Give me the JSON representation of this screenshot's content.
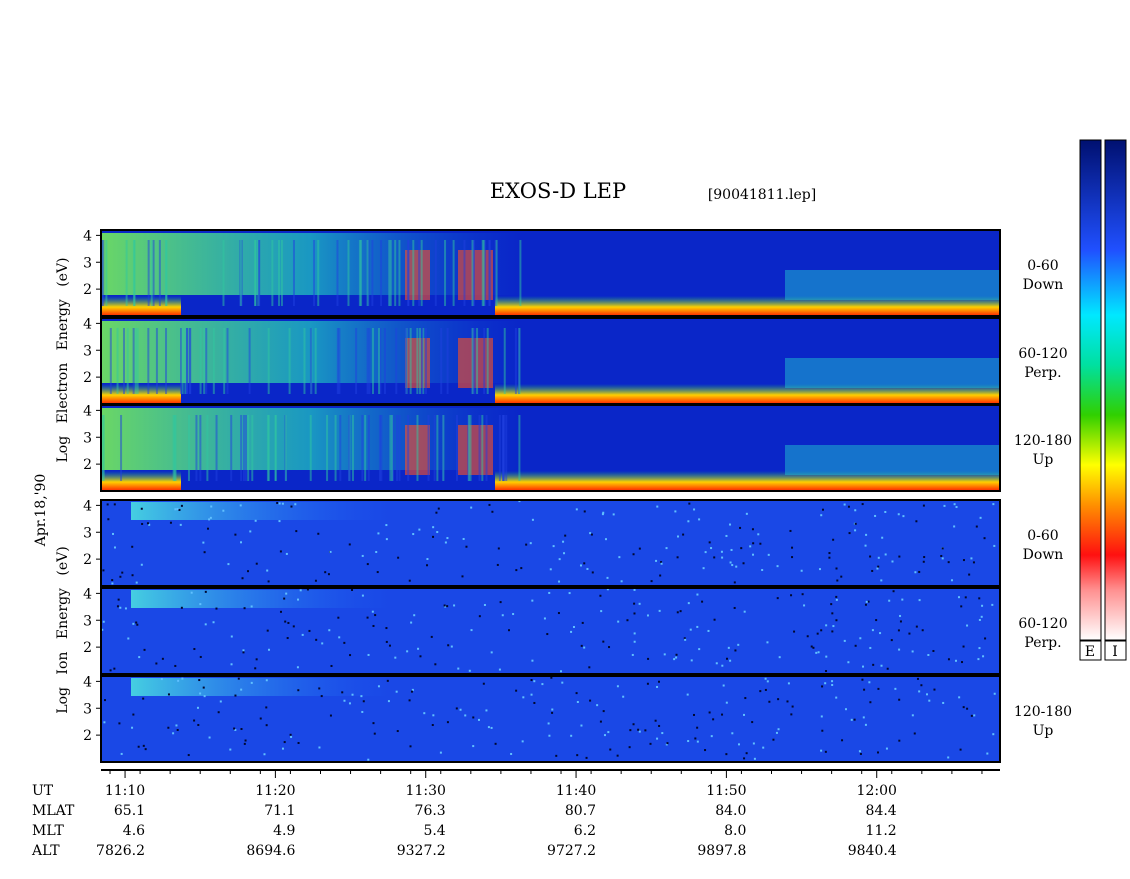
{
  "chart_data": {
    "type": "spectrogram",
    "title": "EXOS-D LEP",
    "file": "[90041811.lep]",
    "date": "Apr.18,'90",
    "ylim": [
      1,
      4.2
    ],
    "yticks": [
      2,
      3,
      4
    ],
    "xlim": [
      8.4,
      68.2
    ],
    "xlabel": "UT",
    "xticks": [
      {
        "value": 10,
        "label": "11:10"
      },
      {
        "value": 20,
        "label": "11:20"
      },
      {
        "value": 30,
        "label": "11:30"
      },
      {
        "value": 40,
        "label": "11:40"
      },
      {
        "value": 50,
        "label": "11:50"
      },
      {
        "value": 60,
        "label": "12:00"
      }
    ],
    "orbit": {
      "labels": [
        "MLAT",
        "MLT",
        "ALT"
      ],
      "rows": [
        [
          "65.1",
          "71.1",
          "76.3",
          "80.7",
          "84.0",
          "84.4"
        ],
        [
          "4.6",
          "4.9",
          "5.4",
          "6.2",
          "8.0",
          "11.2"
        ],
        [
          "7826.2",
          "8694.6",
          "9327.2",
          "9727.2",
          "9897.8",
          "9840.4"
        ]
      ]
    },
    "groups": [
      {
        "ylabel": "Log Electron Energy (eV)",
        "panels": [
          [
            "0-60",
            "Down"
          ],
          [
            "60-120",
            "Perp."
          ],
          [
            "120-180",
            "Up"
          ]
        ]
      },
      {
        "ylabel": "Log Ion Energy (eV)",
        "panels": [
          [
            "0-60",
            "Down"
          ],
          [
            "60-120",
            "Perp."
          ],
          [
            "120-180",
            "Up"
          ]
        ]
      }
    ],
    "colorbars": [
      "E",
      "I"
    ]
  }
}
